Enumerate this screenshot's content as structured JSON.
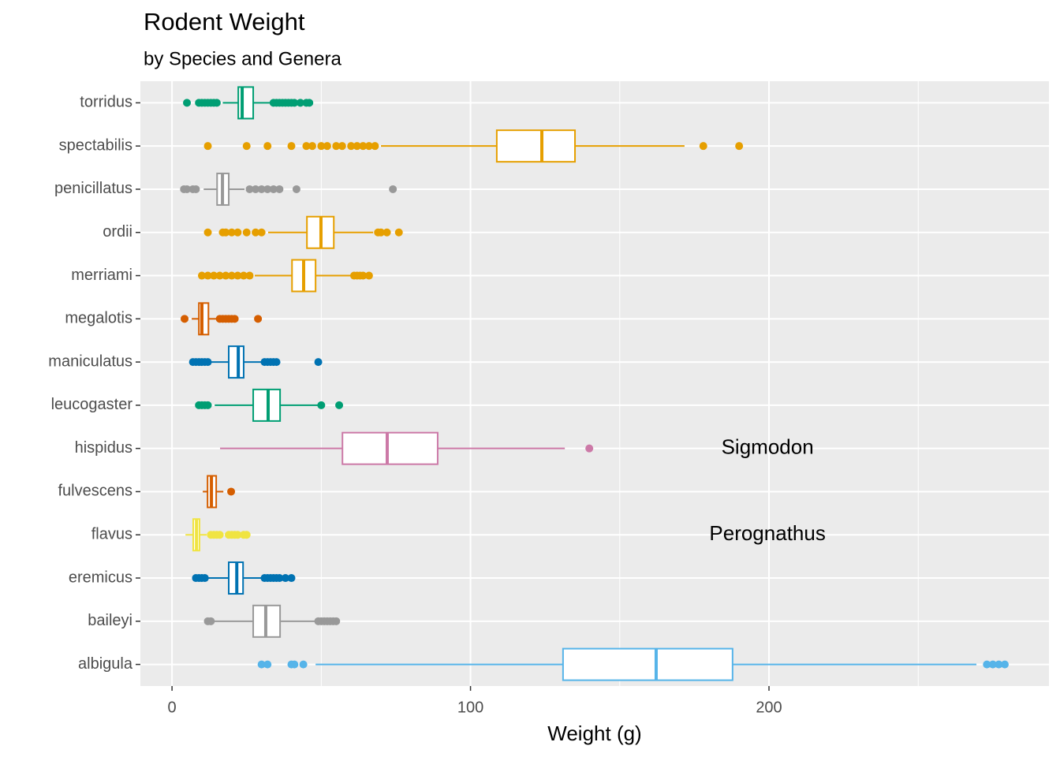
{
  "chart_data": {
    "type": "boxplot",
    "orientation": "horizontal",
    "title": "Rodent Weight",
    "subtitle": "by Species and Genera",
    "x_label": "Weight (g)",
    "xlim": [
      -10.6,
      293.8
    ],
    "xticks": [
      0,
      100,
      200
    ],
    "minor_xticks": [
      50,
      150,
      250
    ],
    "grid": true,
    "categories": [
      "albigula",
      "baileyi",
      "eremicus",
      "flavus",
      "fulvescens",
      "hispidus",
      "leucogaster",
      "maniculatus",
      "megalotis",
      "merriami",
      "ordii",
      "penicillatus",
      "spectabilis",
      "torridus"
    ],
    "boxes": [
      {
        "color": "#56B4E9",
        "low": 48.1,
        "q1": 131.0,
        "median": 162.2,
        "q3": 187.8,
        "high": 269.5,
        "outliers": [
          30,
          32,
          40,
          41,
          44,
          273,
          275,
          277,
          279
        ]
      },
      {
        "color": "#999999",
        "low": 13.7,
        "q1": 27.2,
        "median": 31.4,
        "q3": 36.2,
        "high": 48.6,
        "outliers": [
          12,
          13,
          49,
          50,
          51,
          52,
          53,
          54,
          55
        ]
      },
      {
        "color": "#0072B2",
        "low": 11.6,
        "q1": 19.0,
        "median": 21.7,
        "q3": 23.8,
        "high": 30.4,
        "outliers": [
          8,
          9,
          10,
          11,
          31,
          32,
          33,
          34,
          35,
          36,
          38,
          40
        ]
      },
      {
        "color": "#F0E442",
        "low": 4.5,
        "q1": 7.1,
        "median": 8.2,
        "q3": 9.2,
        "high": 11.6,
        "outliers": [
          13,
          14,
          15,
          16,
          19,
          20,
          21,
          22,
          24,
          25
        ]
      },
      {
        "color": "#D55E00",
        "low": 10.3,
        "q1": 11.9,
        "median": 13.2,
        "q3": 14.8,
        "high": 17.2,
        "outliers": [
          19.8
        ]
      },
      {
        "color": "#CC79A7",
        "low": 16.1,
        "q1": 57.1,
        "median": 72.1,
        "q3": 89.0,
        "high": 131.6,
        "outliers": [
          139.8
        ]
      },
      {
        "color": "#009E73",
        "low": 14.3,
        "q1": 27.2,
        "median": 32.2,
        "q3": 36.2,
        "high": 49.4,
        "outliers": [
          9,
          10,
          11,
          12,
          50,
          56
        ]
      },
      {
        "color": "#0072B2",
        "low": 12.4,
        "q1": 19.0,
        "median": 22.2,
        "q3": 24.0,
        "high": 30.6,
        "outliers": [
          7,
          8,
          9,
          10,
          11,
          12,
          31,
          32,
          33,
          34,
          35,
          49
        ]
      },
      {
        "color": "#D55E00",
        "low": 6.6,
        "q1": 9.0,
        "median": 10.0,
        "q3": 12.2,
        "high": 15.3,
        "outliers": [
          4.2,
          16,
          17,
          18,
          19,
          20,
          21,
          28.8
        ]
      },
      {
        "color": "#E69F00",
        "low": 27.7,
        "q1": 40.2,
        "median": 44.1,
        "q3": 48.1,
        "high": 60.2,
        "outliers": [
          10,
          12,
          14,
          16,
          18,
          20,
          22,
          24,
          26,
          61,
          62,
          63,
          64,
          66
        ]
      },
      {
        "color": "#E69F00",
        "low": 32.2,
        "q1": 45.2,
        "median": 49.9,
        "q3": 54.2,
        "high": 67.4,
        "outliers": [
          12,
          17,
          18,
          20,
          22,
          25,
          28,
          30,
          69,
          70,
          72,
          76
        ]
      },
      {
        "color": "#999999",
        "low": 10.6,
        "q1": 15.1,
        "median": 16.9,
        "q3": 19.0,
        "high": 24.3,
        "outliers": [
          4,
          5,
          7,
          8,
          26,
          28,
          30,
          32,
          34,
          36,
          41.7,
          74
        ]
      },
      {
        "color": "#E69F00",
        "low": 70,
        "q1": 108.8,
        "median": 123.9,
        "q3": 135.0,
        "high": 171.7,
        "outliers": [
          12,
          25,
          32,
          40,
          45,
          47,
          50,
          52,
          55,
          57,
          60,
          62,
          64,
          66,
          68,
          178,
          190
        ]
      },
      {
        "color": "#009E73",
        "low": 17,
        "q1": 22.2,
        "median": 23.5,
        "q3": 27.2,
        "high": 33,
        "outliers": [
          5,
          9,
          10,
          11,
          12,
          13,
          14,
          15,
          34,
          35,
          36,
          37,
          38,
          39,
          40,
          41,
          43,
          45,
          46
        ]
      }
    ],
    "annotations": [
      {
        "text": "Sigmodon",
        "x": 199.5,
        "category": "hispidus"
      },
      {
        "text": "Perognathus",
        "x": 199.5,
        "category": "flavus"
      }
    ]
  }
}
